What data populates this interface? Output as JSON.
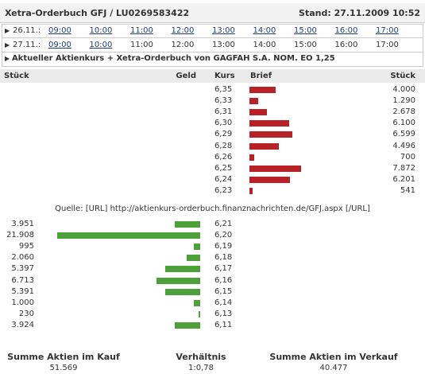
{
  "header": {
    "title": "Xetra-Orderbuch GFJ / LU0269583422",
    "stand": "Stand: 27.11.2009 10:52"
  },
  "nav": {
    "rows": [
      {
        "date": "26.11.:",
        "links": [
          "09:00",
          "10:00",
          "11:00",
          "12:00",
          "13:00",
          "14:00",
          "15:00",
          "16:00",
          "17:00"
        ],
        "times": []
      },
      {
        "date": "27.11.:",
        "links": [
          "09:00",
          "10:00"
        ],
        "times": [
          "11:00",
          "12:00",
          "13:00",
          "14:00",
          "15:00",
          "16:00",
          "17:00"
        ]
      }
    ],
    "current": "Aktueller Aktienkurs + Xetra-Orderbuch von GAGFAH S.A. NOM. EO 1,25"
  },
  "columns": {
    "bid_volume": "Stück",
    "bid": "Geld",
    "price": "Kurs",
    "ask": "Brief",
    "ask_volume": "Stück"
  },
  "ask": {
    "color": "#b82226",
    "prices": [
      "6,35",
      "6,33",
      "6,31",
      "6,30",
      "6,29",
      "6,28",
      "6,26",
      "6,25",
      "6,24",
      "6,23"
    ],
    "volumes": [
      4000,
      1290,
      2678,
      6100,
      6599,
      4496,
      700,
      7872,
      6201,
      541
    ],
    "volume_labels": [
      "4.000",
      "1.290",
      "2.678",
      "6.100",
      "6.599",
      "4.496",
      "700",
      "7.872",
      "6.201",
      "541"
    ]
  },
  "source": "Quelle: [URL] http://aktienkurs-orderbuch.finanznachrichten.de/GFJ.aspx [/URL]",
  "bid": {
    "color": "#4ea13a",
    "prices": [
      "6,21",
      "6,20",
      "6,19",
      "6,18",
      "6,17",
      "6,16",
      "6,15",
      "6,14",
      "6,13",
      "6,11"
    ],
    "volumes": [
      3951,
      21908,
      995,
      2060,
      5397,
      6713,
      5391,
      1000,
      230,
      3924
    ],
    "volume_labels": [
      "3.951",
      "21.908",
      "995",
      "2.060",
      "5.397",
      "6.713",
      "5.391",
      "1.000",
      "230",
      "3.924"
    ]
  },
  "footer": {
    "buy_label": "Summe Aktien im Kauf",
    "buy_value": "51.569",
    "ratio_label": "Verhältnis",
    "ratio_value": "1:0,78",
    "sell_label": "Summe Aktien im Verkauf",
    "sell_value": "40.477"
  }
}
